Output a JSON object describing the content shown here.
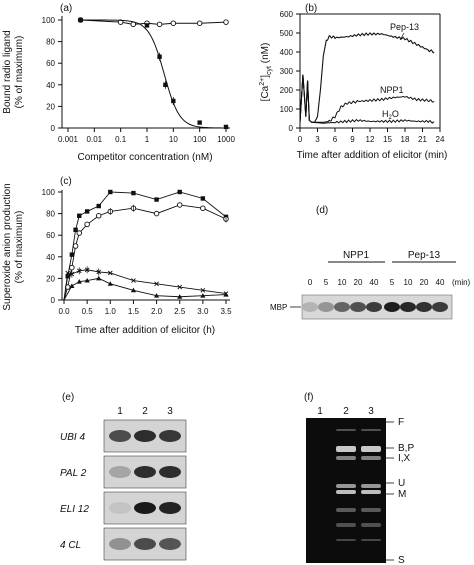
{
  "panels": {
    "e": {
      "lanes": [
        "1",
        "2",
        "3"
      ],
      "rows": [
        "UBI 4",
        "PAL 2",
        "ELI 12",
        "4 CL"
      ]
    },
    "f": {
      "lanes": [
        "1",
        "2",
        "3"
      ],
      "markers": [
        "F",
        "B,P",
        "I,X",
        "U",
        "M",
        "S"
      ]
    }
  },
  "chart_data": [
    {
      "panel": "(a)",
      "type": "line",
      "ylabel": "Bound radio ligand (% of maximum)",
      "xlabel": "Competitor concentration (nM)",
      "xscale": "log",
      "xlim": [
        0.001,
        1000
      ],
      "ylim": [
        0,
        100
      ],
      "xticks": [
        "0.001",
        "0.01",
        "0.1",
        "1",
        "10",
        "100",
        "1000"
      ],
      "yticks": [
        0,
        20,
        40,
        60,
        80,
        100
      ],
      "series": [
        {
          "marker": "open-circle",
          "x": [
            0.003,
            0.1,
            0.3,
            1,
            3,
            10,
            100,
            1000
          ],
          "y": [
            100,
            98,
            96,
            97,
            96,
            97,
            97,
            98
          ]
        },
        {
          "marker": "filled-square",
          "x": [
            0.003,
            1,
            3,
            5,
            10,
            100,
            1000
          ],
          "y": [
            100,
            95,
            66,
            40,
            25,
            5,
            1
          ]
        }
      ]
    },
    {
      "panel": "(b)",
      "type": "line",
      "ylabel": "[Ca2+]cyt (nM)",
      "xlabel": "Time after addition of elicitor (min)",
      "xlim": [
        0,
        24
      ],
      "ylim": [
        0,
        600
      ],
      "xticks": [
        0,
        3,
        6,
        9,
        12,
        15,
        18,
        21,
        24
      ],
      "yticks": [
        0,
        100,
        200,
        300,
        400,
        500,
        600
      ],
      "series": [
        {
          "name": "Pep-13",
          "x": [
            0,
            0.5,
            1,
            1.3,
            1.6,
            2,
            2.5,
            3,
            3.5,
            4,
            4.5,
            5,
            5.5,
            6,
            8,
            10,
            12,
            14,
            16,
            18,
            20,
            22,
            23
          ],
          "y": [
            30,
            280,
            60,
            250,
            40,
            30,
            30,
            60,
            200,
            380,
            460,
            480,
            480,
            475,
            480,
            490,
            495,
            495,
            480,
            470,
            440,
            410,
            400
          ]
        },
        {
          "name": "NPP1",
          "x": [
            0,
            0.5,
            1,
            1.3,
            1.6,
            2,
            3,
            4,
            5,
            6,
            7,
            8,
            9,
            10,
            12,
            14,
            16,
            18,
            20,
            22,
            23
          ],
          "y": [
            30,
            280,
            60,
            250,
            40,
            30,
            30,
            30,
            35,
            60,
            110,
            130,
            135,
            140,
            145,
            150,
            160,
            165,
            150,
            145,
            140
          ]
        },
        {
          "name": "H2O",
          "x": [
            0,
            0.5,
            1,
            1.3,
            1.6,
            2,
            4,
            6,
            8,
            10,
            12,
            14,
            16,
            18,
            20,
            22,
            23
          ],
          "y": [
            30,
            280,
            60,
            250,
            40,
            30,
            25,
            30,
            35,
            40,
            35,
            35,
            35,
            40,
            35,
            35,
            30
          ]
        }
      ]
    },
    {
      "panel": "(c)",
      "type": "line",
      "ylabel": "Superoxide anion production (% of maximum)",
      "xlabel": "Time after addition of elicitor (h)",
      "xlim": [
        0,
        3.5
      ],
      "ylim": [
        0,
        100
      ],
      "xticks": [
        "0.0",
        "0.5",
        "1.0",
        "1.5",
        "2.0",
        "2.5",
        "3.0",
        "3.5"
      ],
      "yticks": [
        0,
        20,
        40,
        60,
        80,
        100
      ],
      "series": [
        {
          "marker": "filled-square",
          "x": [
            0,
            0.08,
            0.17,
            0.25,
            0.33,
            0.5,
            0.75,
            1.0,
            1.5,
            2.0,
            2.5,
            3.0,
            3.5
          ],
          "y": [
            0,
            22,
            42,
            65,
            78,
            82,
            87,
            100,
            99,
            93,
            100,
            94,
            77
          ]
        },
        {
          "marker": "open-circle",
          "x": [
            0,
            0.08,
            0.17,
            0.25,
            0.33,
            0.5,
            0.75,
            1.0,
            1.5,
            2.0,
            2.5,
            3.0,
            3.5
          ],
          "y": [
            0,
            12,
            30,
            50,
            62,
            70,
            78,
            82,
            85,
            80,
            88,
            85,
            75
          ]
        },
        {
          "marker": "x",
          "x": [
            0,
            0.08,
            0.17,
            0.33,
            0.5,
            0.75,
            1.0,
            1.5,
            2.0,
            2.5,
            3.0,
            3.5
          ],
          "y": [
            0,
            25,
            24,
            27,
            28,
            26,
            25,
            18,
            15,
            12,
            9,
            6
          ]
        },
        {
          "marker": "filled-triangle",
          "x": [
            0,
            0.17,
            0.33,
            0.5,
            0.75,
            1.0,
            1.5,
            2.0,
            2.5,
            3.0,
            3.5
          ],
          "y": [
            0,
            13,
            17,
            18,
            20,
            15,
            9,
            4,
            3,
            4,
            5
          ]
        }
      ]
    },
    {
      "panel": "(d)",
      "type": "table",
      "row_label": "MBP",
      "groups": [
        "NPP1",
        "Pep-13"
      ],
      "lanes": [
        "0",
        "5",
        "10",
        "20",
        "40",
        "5",
        "10",
        "20",
        "40"
      ],
      "unit": "(min)",
      "intensity": [
        0.2,
        0.35,
        0.6,
        0.7,
        0.8,
        0.95,
        0.9,
        0.85,
        0.8
      ]
    }
  ]
}
